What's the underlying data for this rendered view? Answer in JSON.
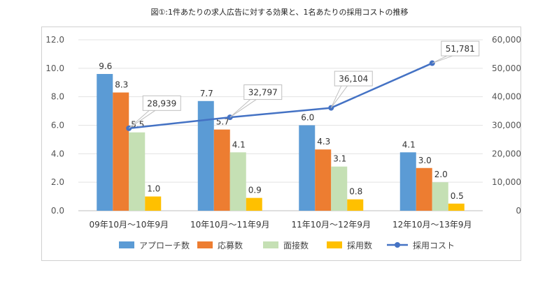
{
  "title": "図①:1件あたりの求人広告に対する効果と、1名あたりの採用コストの推移",
  "chart_data": {
    "type": "bar",
    "title": "図①:1件あたりの求人広告に対する効果と、1名あたりの採用コストの推移",
    "categories": [
      "09年10月～10年9月",
      "10年10月～11年9月",
      "11年10月～12年9月",
      "12年10月～13年9月"
    ],
    "series": [
      {
        "name": "アプローチ数",
        "color": "#5b9bd5",
        "values": [
          9.6,
          7.7,
          6.0,
          4.1
        ],
        "labels": [
          "9.6",
          "7.7",
          "6.0",
          "4.1"
        ]
      },
      {
        "name": "応募数",
        "color": "#ed7d31",
        "values": [
          8.3,
          5.7,
          4.3,
          3.0
        ],
        "labels": [
          "8.3",
          "5.7",
          "4.3",
          "3.0"
        ]
      },
      {
        "name": "面接数",
        "color": "#c5e0b4",
        "values": [
          5.5,
          4.1,
          3.1,
          2.0
        ],
        "labels": [
          "5.5",
          "4.1",
          "3.1",
          "2.0"
        ]
      },
      {
        "name": "採用数",
        "color": "#ffc000",
        "values": [
          1.0,
          0.9,
          0.8,
          0.5
        ],
        "labels": [
          "1.0",
          "0.9",
          "0.8",
          "0.5"
        ]
      }
    ],
    "line_series": {
      "name": "採用コスト",
      "color": "#4472c4",
      "values": [
        28939,
        32797,
        36104,
        51781
      ],
      "labels": [
        "28,939",
        "32,797",
        "36,104",
        "51,781"
      ]
    },
    "y_left": {
      "ylim": [
        0,
        12
      ],
      "ticks": [
        "0.0",
        "2.0",
        "4.0",
        "6.0",
        "8.0",
        "10.0",
        "12.0"
      ]
    },
    "y_right": {
      "ylim": [
        0,
        60000
      ],
      "ticks": [
        "0",
        "10,000",
        "20,000",
        "30,000",
        "40,000",
        "50,000",
        "60,000"
      ]
    },
    "legend_position": "bottom",
    "grid": true
  }
}
